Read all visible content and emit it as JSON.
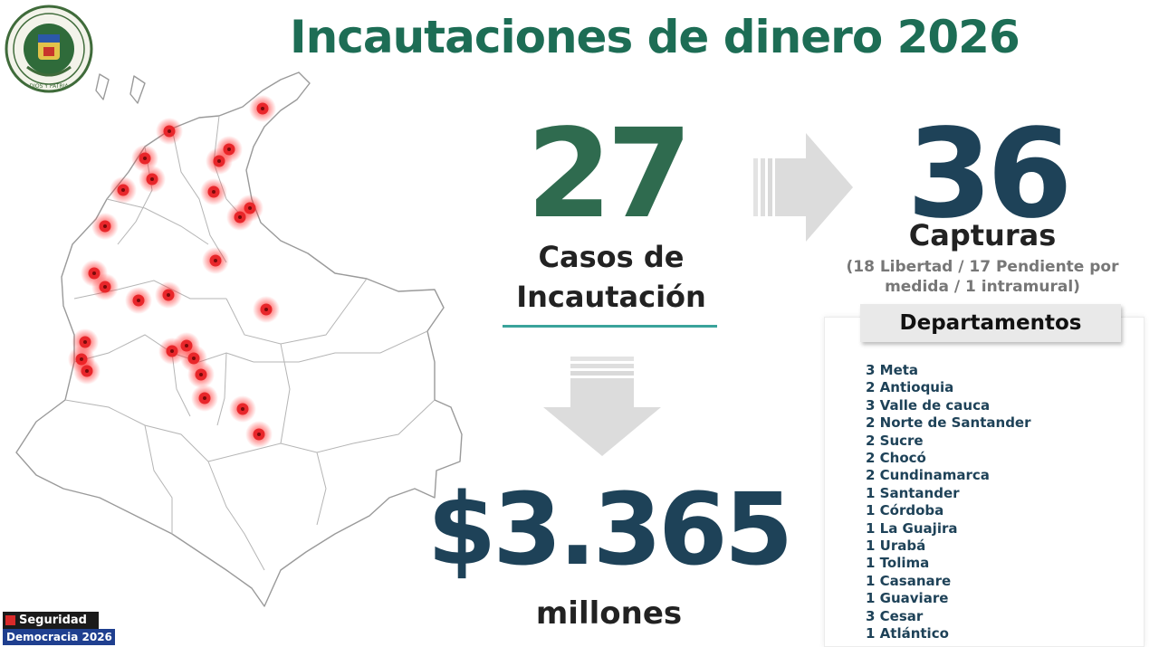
{
  "header": {
    "title": "Incautaciones de dinero 2026"
  },
  "colors": {
    "title_green": "#1d6d55",
    "cases_green": "#2f6b4f",
    "navy": "#1e4258",
    "teal_line": "#3aa39b",
    "arrow_gray": "#dcdcdc",
    "marker_red": "#e8262a",
    "map_stroke": "#9a9a9a"
  },
  "emblem": {
    "ring_text": "REPÚBLICA DE COLOMBIA",
    "motto": "DIOS Y PATRIA"
  },
  "cases": {
    "number": "27",
    "label_line1": "Casos de",
    "label_line2": "Incautación"
  },
  "captures": {
    "number": "36",
    "label": "Capturas",
    "detail_line1": "(18 Libertad / 17 Pendiente por",
    "detail_line2": "medida / 1 intramural)"
  },
  "money": {
    "number": "$3.365",
    "label": "millones"
  },
  "departments": {
    "header": "Departamentos",
    "items": [
      "3 Meta",
      "2 Antioquia",
      "3 Valle de cauca",
      "2 Norte de Santander",
      "2 Sucre",
      "2 Chocó",
      "2 Cundinamarca",
      "1 Santander",
      "1 Córdoba",
      "1 La Guajira",
      "1 Urabá",
      "1 Tolima",
      "1 Casanare",
      "1 Guaviare",
      "3 Cesar",
      "1 Atlántico"
    ]
  },
  "footer": {
    "line1": "Seguridad",
    "line2_a": "Democracia",
    "line2_b": "2026"
  }
}
